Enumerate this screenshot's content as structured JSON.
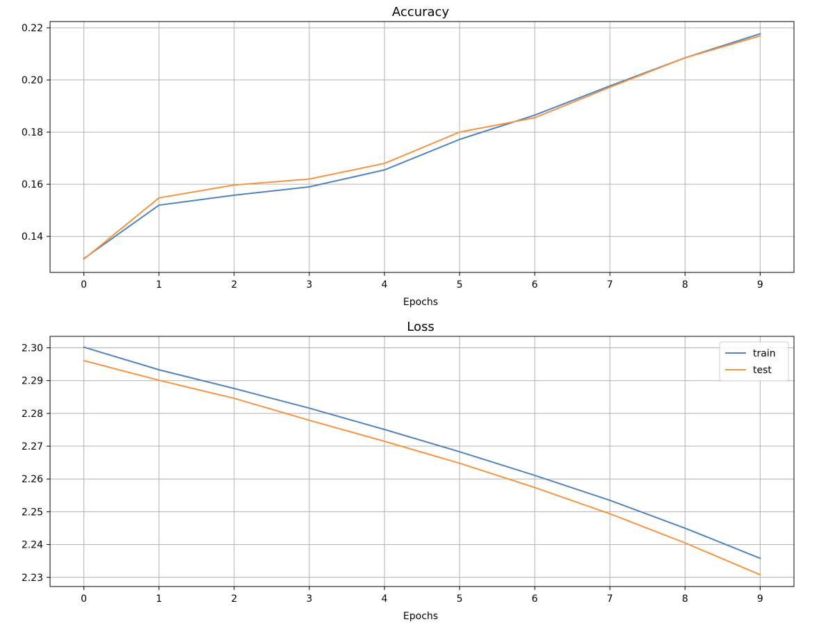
{
  "chart_data": [
    {
      "type": "line",
      "title": "Accuracy",
      "xlabel": "Epochs",
      "ylabel": "",
      "x": [
        0,
        1,
        2,
        3,
        4,
        5,
        6,
        7,
        8,
        9
      ],
      "xticks": [
        "0",
        "1",
        "2",
        "3",
        "4",
        "5",
        "6",
        "7",
        "8",
        "9"
      ],
      "xlim": [
        -0.45,
        9.45
      ],
      "ylim": [
        0.1262,
        0.2224
      ],
      "yticks": [
        "0.14",
        "0.16",
        "0.18",
        "0.20",
        "0.22"
      ],
      "grid": true,
      "legend": false,
      "series": [
        {
          "name": "",
          "color": "#4f81bd",
          "values": [
            0.1315,
            0.152,
            0.1558,
            0.159,
            0.1655,
            0.1772,
            0.1865,
            0.1977,
            0.2085,
            0.2177
          ]
        },
        {
          "name": "",
          "color": "#f59340",
          "values": [
            0.1313,
            0.1548,
            0.1597,
            0.162,
            0.168,
            0.18,
            0.1855,
            0.1972,
            0.2085,
            0.2169
          ]
        }
      ]
    },
    {
      "type": "line",
      "title": "Loss",
      "xlabel": "Epochs",
      "ylabel": "",
      "x": [
        0,
        1,
        2,
        3,
        4,
        5,
        6,
        7,
        8,
        9
      ],
      "xticks": [
        "0",
        "1",
        "2",
        "3",
        "4",
        "5",
        "6",
        "7",
        "8",
        "9"
      ],
      "xlim": [
        -0.45,
        9.45
      ],
      "ylim": [
        2.2272,
        2.3035
      ],
      "yticks": [
        "2.23",
        "2.24",
        "2.25",
        "2.26",
        "2.27",
        "2.28",
        "2.29",
        "2.30"
      ],
      "grid": true,
      "legend": true,
      "legend_position": "upper right",
      "series": [
        {
          "name": "train",
          "color": "#4f81bd",
          "values": [
            2.3002,
            2.2933,
            2.2876,
            2.2816,
            2.2751,
            2.2683,
            2.2611,
            2.2535,
            2.245,
            2.2358
          ]
        },
        {
          "name": "test",
          "color": "#f59340",
          "values": [
            2.2961,
            2.2901,
            2.2846,
            2.2779,
            2.2715,
            2.2648,
            2.2574,
            2.2494,
            2.2405,
            2.2308
          ]
        }
      ]
    }
  ]
}
